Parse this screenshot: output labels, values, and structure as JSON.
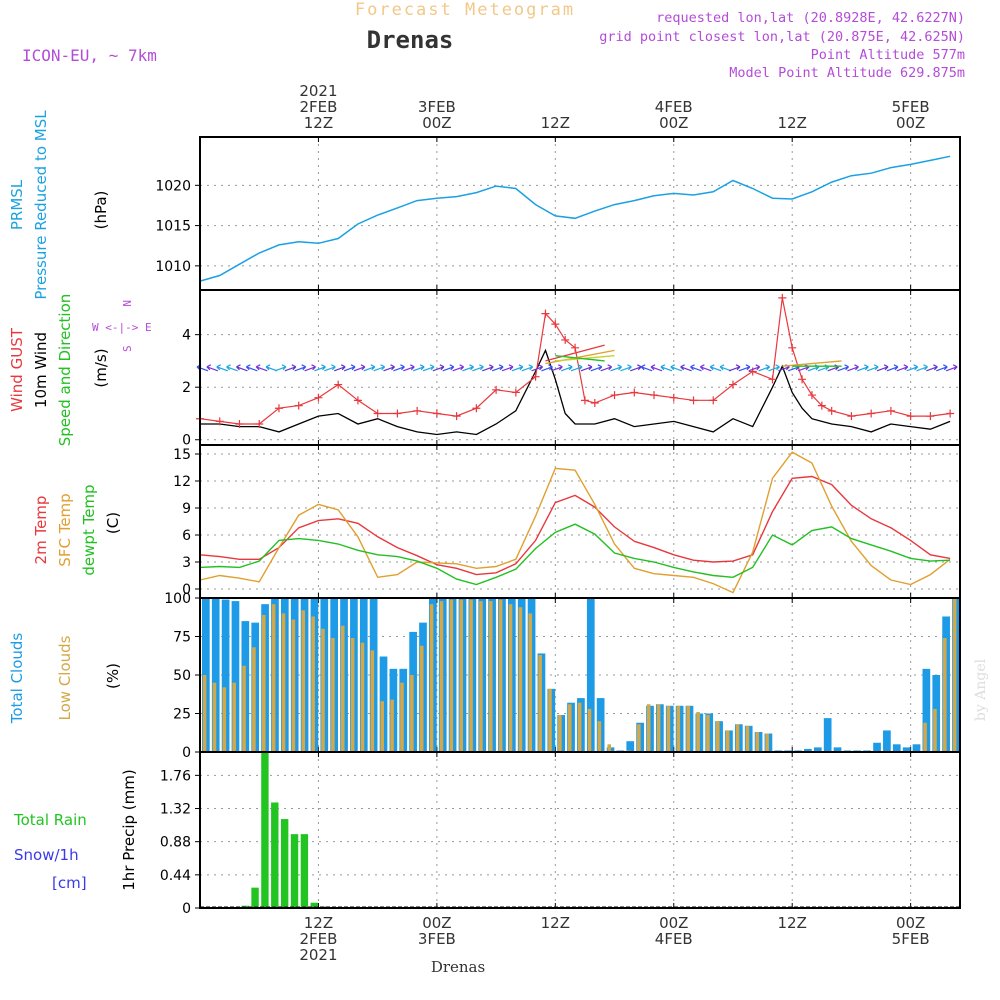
{
  "header": {
    "subtitle": "Forecast Meteogram",
    "station": "Drenas",
    "model": "ICON-EU, ~ 7km",
    "requested": "requested lon,lat (20.8928E, 42.6227N)",
    "gridpoint": "grid point closest lon,lat (20.875E, 42.625N)",
    "point_alt": "Point Altitude 577m",
    "model_alt": "Model Point Altitude 629.875m",
    "bottom_station": "Drenas",
    "watermark": "by Angel"
  },
  "time_axis": {
    "year": "2021",
    "ticks": [
      {
        "hour": 12,
        "top": [
          "2021",
          "2FEB",
          "12Z"
        ],
        "bottom": [
          "12Z",
          "2FEB",
          "2021"
        ]
      },
      {
        "hour": 24,
        "top": [
          "3FEB",
          "00Z"
        ],
        "bottom": [
          "00Z",
          "3FEB"
        ]
      },
      {
        "hour": 36,
        "top": [
          "12Z"
        ],
        "bottom": [
          "12Z"
        ]
      },
      {
        "hour": 48,
        "top": [
          "4FEB",
          "00Z"
        ],
        "bottom": [
          "00Z",
          "4FEB"
        ]
      },
      {
        "hour": 60,
        "top": [
          "12Z"
        ],
        "bottom": [
          "12Z"
        ]
      },
      {
        "hour": 72,
        "top": [
          "5FEB",
          "00Z"
        ],
        "bottom": [
          "00Z",
          "5FEB"
        ]
      }
    ],
    "range": [
      0,
      77
    ]
  },
  "colors": {
    "pressure": "#1ba1e2",
    "gust": "#e8383d",
    "wind": "#000000",
    "temp2m": "#e8383d",
    "sfc": "#e0a030",
    "dew": "#22c022",
    "total_cloud": "#1e9be6",
    "low_cloud": "#d4a848",
    "rain": "#22c422",
    "snow": "#3a3ae8",
    "purple": "#b44cd8"
  },
  "chart_data": [
    {
      "type": "line",
      "panel": "pressure",
      "ylabel": [
        "PRMSL",
        "Pressure Reduced to MSL"
      ],
      "unit": "(hPa)",
      "ylim": [
        1007,
        1026
      ],
      "yticks": [
        1010,
        1015,
        1020
      ],
      "series": [
        {
          "name": "PRMSL",
          "x": [
            0,
            2,
            4,
            6,
            8,
            10,
            12,
            14,
            16,
            18,
            20,
            22,
            24,
            26,
            28,
            30,
            32,
            34,
            36,
            38,
            40,
            42,
            44,
            46,
            48,
            50,
            52,
            54,
            56,
            58,
            60,
            62,
            64,
            66,
            68,
            70,
            72,
            74,
            76
          ],
          "values": [
            1008.1,
            1008.8,
            1010.2,
            1011.6,
            1012.6,
            1013.0,
            1012.8,
            1013.4,
            1015.2,
            1016.3,
            1017.2,
            1018.1,
            1018.4,
            1018.6,
            1019.1,
            1019.9,
            1019.6,
            1017.6,
            1016.2,
            1015.9,
            1016.8,
            1017.6,
            1018.1,
            1018.7,
            1019.0,
            1018.8,
            1019.2,
            1020.6,
            1019.6,
            1018.4,
            1018.3,
            1019.2,
            1020.4,
            1021.2,
            1021.5,
            1022.2,
            1022.6,
            1023.1,
            1023.6
          ]
        }
      ]
    },
    {
      "type": "line",
      "panel": "wind",
      "ylabel": [
        "Wind GUST",
        "10m Wind",
        "Speed and Direction"
      ],
      "unit": "(m/s)",
      "compass": "W <-|-> E",
      "ylim": [
        -0.2,
        5.7
      ],
      "yticks": [
        0,
        2,
        4
      ],
      "series": [
        {
          "name": "Wind GUST",
          "x": [
            0,
            2,
            4,
            6,
            8,
            10,
            12,
            14,
            16,
            18,
            20,
            22,
            24,
            26,
            28,
            30,
            32,
            34,
            35,
            36,
            37,
            38,
            39,
            40,
            42,
            44,
            46,
            48,
            50,
            52,
            54,
            56,
            58,
            59,
            60,
            61,
            62,
            63,
            64,
            66,
            68,
            70,
            72,
            74,
            76
          ],
          "values": [
            0.8,
            0.7,
            0.6,
            0.6,
            1.2,
            1.3,
            1.6,
            2.1,
            1.5,
            1.0,
            1.0,
            1.1,
            1.0,
            0.9,
            1.2,
            1.9,
            1.8,
            2.4,
            4.8,
            4.4,
            3.8,
            3.5,
            1.5,
            1.4,
            1.7,
            1.8,
            1.7,
            1.6,
            1.5,
            1.5,
            2.1,
            2.6,
            2.3,
            5.4,
            3.5,
            2.3,
            1.7,
            1.3,
            1.1,
            0.9,
            1.0,
            1.1,
            0.9,
            0.9,
            1.0
          ]
        },
        {
          "name": "10m Wind",
          "x": [
            0,
            2,
            4,
            6,
            8,
            10,
            12,
            14,
            16,
            18,
            20,
            22,
            24,
            26,
            28,
            30,
            32,
            34,
            35,
            36,
            37,
            38,
            40,
            42,
            44,
            46,
            48,
            50,
            52,
            54,
            56,
            58,
            59,
            60,
            61,
            62,
            63,
            64,
            66,
            68,
            70,
            72,
            74,
            76
          ],
          "values": [
            0.6,
            0.6,
            0.5,
            0.5,
            0.3,
            0.6,
            0.9,
            1.0,
            0.6,
            0.8,
            0.5,
            0.3,
            0.2,
            0.3,
            0.2,
            0.6,
            1.1,
            2.6,
            3.4,
            2.3,
            1.0,
            0.6,
            0.6,
            0.8,
            0.5,
            0.6,
            0.7,
            0.5,
            0.3,
            0.8,
            0.5,
            2.0,
            2.8,
            1.8,
            1.2,
            0.8,
            0.7,
            0.6,
            0.5,
            0.3,
            0.6,
            0.5,
            0.4,
            0.7
          ]
        }
      ]
    },
    {
      "type": "line",
      "panel": "temperature",
      "ylabel": [
        "2m Temp",
        "SFC Temp",
        "dewpt Temp"
      ],
      "unit": "(C)",
      "ylim": [
        -1,
        16
      ],
      "yticks": [
        0,
        3,
        6,
        9,
        12,
        15
      ],
      "series": [
        {
          "name": "2m Temp",
          "x": [
            0,
            2,
            4,
            6,
            8,
            10,
            12,
            14,
            16,
            18,
            20,
            22,
            24,
            26,
            28,
            30,
            32,
            34,
            36,
            38,
            40,
            42,
            44,
            46,
            48,
            50,
            52,
            54,
            56,
            58,
            60,
            62,
            64,
            66,
            68,
            70,
            72,
            74,
            76
          ],
          "values": [
            3.8,
            3.6,
            3.3,
            3.3,
            4.6,
            6.8,
            7.6,
            7.8,
            7.3,
            5.8,
            4.6,
            3.7,
            2.7,
            2.3,
            1.6,
            1.8,
            2.8,
            5.4,
            9.6,
            10.4,
            9.1,
            6.9,
            5.3,
            4.6,
            3.8,
            3.2,
            3.0,
            3.1,
            3.8,
            8.6,
            12.3,
            12.5,
            11.6,
            9.3,
            7.8,
            6.8,
            5.4,
            3.8,
            3.4
          ]
        },
        {
          "name": "SFC Temp",
          "x": [
            0,
            2,
            4,
            6,
            8,
            10,
            12,
            14,
            16,
            18,
            20,
            22,
            24,
            26,
            28,
            30,
            32,
            34,
            36,
            38,
            40,
            42,
            44,
            46,
            48,
            50,
            52,
            54,
            56,
            58,
            60,
            62,
            64,
            66,
            68,
            70,
            72,
            74,
            76
          ],
          "values": [
            1.0,
            1.5,
            1.2,
            0.8,
            4.6,
            8.2,
            9.4,
            8.8,
            5.8,
            1.3,
            1.6,
            3.0,
            2.9,
            2.8,
            2.3,
            2.5,
            3.3,
            8.1,
            13.4,
            13.2,
            9.4,
            5.0,
            2.3,
            1.7,
            1.5,
            1.3,
            0.6,
            -0.4,
            4.1,
            12.3,
            15.2,
            14.0,
            9.2,
            5.3,
            2.6,
            1.0,
            0.5,
            1.6,
            3.3
          ]
        },
        {
          "name": "dewpt Temp",
          "x": [
            0,
            2,
            4,
            6,
            8,
            10,
            12,
            14,
            16,
            18,
            20,
            22,
            24,
            26,
            28,
            30,
            32,
            34,
            36,
            38,
            40,
            42,
            44,
            46,
            48,
            50,
            52,
            54,
            56,
            58,
            60,
            62,
            64,
            66,
            68,
            70,
            72,
            74,
            76
          ],
          "values": [
            2.4,
            2.5,
            2.4,
            3.1,
            5.4,
            5.6,
            5.4,
            5.0,
            4.3,
            3.8,
            3.6,
            3.1,
            2.3,
            1.1,
            0.5,
            1.3,
            2.2,
            4.5,
            6.3,
            7.2,
            6.1,
            4.0,
            3.4,
            3.0,
            2.4,
            1.9,
            1.5,
            1.3,
            2.4,
            6.0,
            4.9,
            6.5,
            6.9,
            5.6,
            4.9,
            4.2,
            3.4,
            3.1,
            3.2
          ]
        }
      ]
    },
    {
      "type": "bar",
      "panel": "clouds",
      "ylabel": [
        "Total Clouds",
        "Low Clouds"
      ],
      "unit": "(%)",
      "ylim": [
        0,
        100
      ],
      "yticks": [
        0,
        25,
        50,
        75,
        100
      ],
      "x": [
        0,
        1,
        2,
        3,
        4,
        5,
        6,
        7,
        8,
        9,
        10,
        11,
        12,
        13,
        14,
        15,
        16,
        17,
        18,
        19,
        20,
        21,
        22,
        23,
        24,
        25,
        26,
        27,
        28,
        29,
        30,
        31,
        32,
        33,
        34,
        35,
        36,
        37,
        38,
        39,
        40,
        41,
        42,
        43,
        44,
        45,
        46,
        47,
        48,
        49,
        50,
        51,
        52,
        53,
        54,
        55,
        56,
        57,
        58,
        59,
        60,
        61,
        62,
        63,
        64,
        65,
        66,
        67,
        68,
        69,
        70,
        71,
        72,
        73,
        74,
        75,
        76
      ],
      "series": [
        {
          "name": "Total Clouds",
          "values": [
            100,
            100,
            99,
            98,
            85,
            84,
            96,
            100,
            100,
            100,
            100,
            100,
            100,
            100,
            100,
            100,
            100,
            100,
            62,
            54,
            54,
            78,
            84,
            100,
            100,
            100,
            100,
            100,
            100,
            100,
            100,
            100,
            100,
            100,
            64,
            41,
            24,
            32,
            35,
            100,
            35,
            3,
            1,
            7,
            19,
            30,
            31,
            30,
            30,
            30,
            25,
            25,
            20,
            14,
            18,
            17,
            13,
            12,
            1,
            1,
            1,
            2,
            3,
            22,
            3,
            1,
            1,
            1,
            6,
            14,
            5,
            3,
            5,
            54,
            50,
            88,
            100
          ]
        },
        {
          "name": "Low Clouds",
          "values": [
            50,
            45,
            42,
            45,
            56,
            68,
            89,
            96,
            90,
            86,
            92,
            88,
            80,
            74,
            82,
            74,
            71,
            66,
            33,
            34,
            45,
            50,
            69,
            96,
            98,
            99,
            99,
            99,
            98,
            98,
            99,
            96,
            94,
            90,
            63,
            41,
            24,
            31,
            32,
            28,
            20,
            5,
            0,
            1,
            18,
            31,
            31,
            30,
            30,
            30,
            26,
            24,
            20,
            14,
            18,
            17,
            13,
            12,
            0,
            0,
            0,
            0,
            0,
            0,
            0,
            0,
            0,
            0,
            0,
            0,
            0,
            0,
            0,
            19,
            28,
            74,
            100
          ]
        }
      ]
    },
    {
      "type": "bar",
      "panel": "precip",
      "ylabel": [
        "Total Rain",
        "Snow/1h",
        "[cm]"
      ],
      "yaxis_label": "1hr Precip (mm)",
      "ylim": [
        0,
        2.07
      ],
      "yticks": [
        0,
        0.44,
        0.88,
        1.32,
        1.76
      ],
      "ytick_labels": [
        "0",
        "0.44",
        "0.88",
        "1.32",
        "1.76"
      ],
      "x": [
        0,
        1,
        2,
        3,
        4,
        5,
        6,
        7,
        8,
        9,
        10,
        11,
        12,
        13,
        14,
        15,
        16
      ],
      "series": [
        {
          "name": "Total Rain",
          "values": [
            0,
            0,
            0,
            0,
            0.03,
            0.27,
            2.06,
            1.4,
            1.18,
            0.98,
            0.98,
            0.07,
            0.02,
            0,
            0,
            0,
            0
          ]
        }
      ]
    }
  ]
}
